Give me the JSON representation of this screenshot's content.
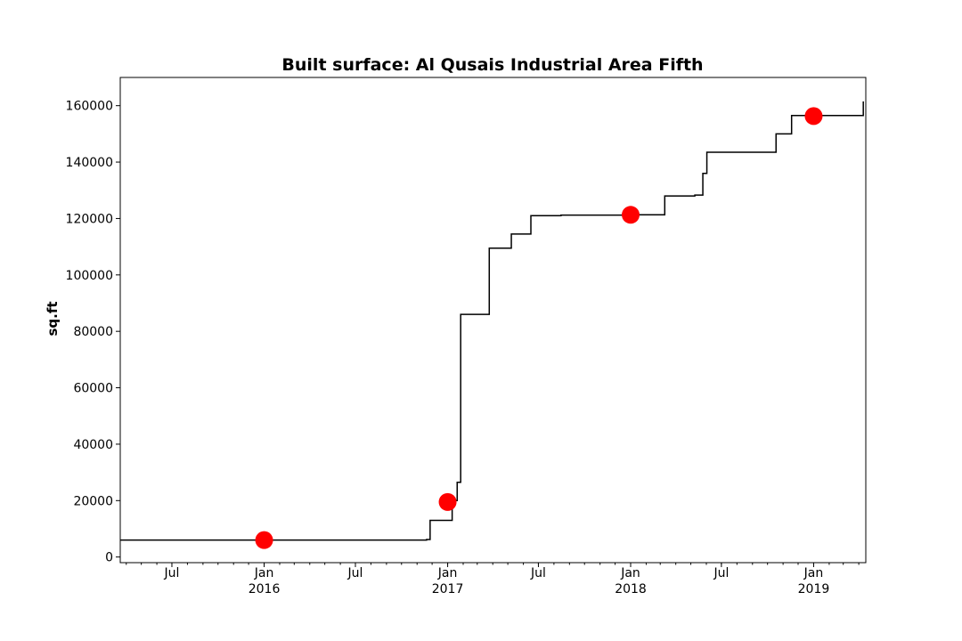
{
  "chart_data": {
    "type": "line",
    "title": "Built surface: Al Qusais Industrial Area Fifth",
    "xlabel": "",
    "ylabel": "sq.ft",
    "xlim": [
      "2015-03-20",
      "2019-04-15"
    ],
    "ylim": [
      -2000,
      170000
    ],
    "yticks": [
      0,
      20000,
      40000,
      60000,
      80000,
      100000,
      120000,
      140000,
      160000
    ],
    "xticks": [
      {
        "date": "2015-07-01",
        "label": "Jul",
        "sublabel": ""
      },
      {
        "date": "2016-01-01",
        "label": "Jan",
        "sublabel": "2016"
      },
      {
        "date": "2016-07-01",
        "label": "Jul",
        "sublabel": ""
      },
      {
        "date": "2017-01-01",
        "label": "Jan",
        "sublabel": "2017"
      },
      {
        "date": "2017-07-01",
        "label": "Jul",
        "sublabel": ""
      },
      {
        "date": "2018-01-01",
        "label": "Jan",
        "sublabel": "2018"
      },
      {
        "date": "2018-07-01",
        "label": "Jul",
        "sublabel": ""
      },
      {
        "date": "2019-01-01",
        "label": "Jan",
        "sublabel": "2019"
      }
    ],
    "grid": false,
    "line_color": "#000000",
    "marker_color": "#ff0000",
    "series": [
      {
        "style": "step",
        "points": [
          {
            "x": "2015-03-20",
            "y": 6000
          },
          {
            "x": "2016-11-20",
            "y": 6200
          },
          {
            "x": "2016-11-27",
            "y": 13000
          },
          {
            "x": "2016-12-27",
            "y": 13000
          },
          {
            "x": "2017-01-10",
            "y": 20000
          },
          {
            "x": "2017-01-20",
            "y": 26500
          },
          {
            "x": "2017-01-27",
            "y": 86000
          },
          {
            "x": "2017-03-25",
            "y": 109500
          },
          {
            "x": "2017-05-08",
            "y": 114500
          },
          {
            "x": "2017-06-16",
            "y": 121000
          },
          {
            "x": "2017-07-10",
            "y": 121000
          },
          {
            "x": "2017-08-15",
            "y": 121200
          },
          {
            "x": "2017-10-15",
            "y": 121200
          },
          {
            "x": "2018-01-15",
            "y": 121300
          },
          {
            "x": "2018-03-10",
            "y": 128000
          },
          {
            "x": "2018-05-09",
            "y": 128300
          },
          {
            "x": "2018-05-25",
            "y": 136000
          },
          {
            "x": "2018-06-02",
            "y": 143500
          },
          {
            "x": "2018-10-18",
            "y": 150000
          },
          {
            "x": "2018-11-18",
            "y": 156500
          },
          {
            "x": "2019-04-10",
            "y": 161500
          }
        ]
      },
      {
        "style": "markers",
        "points": [
          {
            "x": "2016-01-01",
            "y": 6000
          },
          {
            "x": "2017-01-01",
            "y": 19500
          },
          {
            "x": "2018-01-01",
            "y": 121300
          },
          {
            "x": "2019-01-01",
            "y": 156300
          }
        ]
      }
    ]
  }
}
